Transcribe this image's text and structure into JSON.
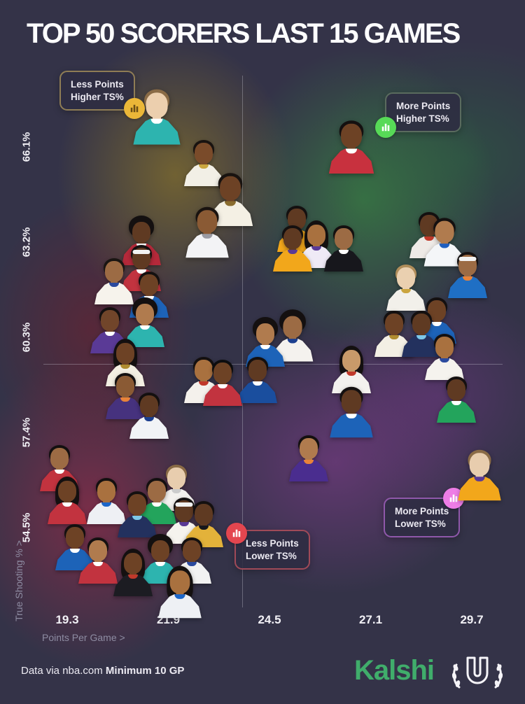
{
  "chart_data": {
    "type": "scatter",
    "title": "TOP 50 SCORERS LAST 15 GAMES",
    "x_axis": {
      "label": "Points Per Game >",
      "ticks": [
        "19.3",
        "21.9",
        "24.5",
        "27.1",
        "29.7"
      ]
    },
    "y_axis": {
      "label": "True Shooting % >",
      "ticks": [
        "66.1%",
        "63.2%",
        "60.3%",
        "57.4%",
        "54.5%"
      ]
    },
    "median_lines": {
      "ppg": 23.8,
      "ts": 59.5
    },
    "grid": false,
    "points": [
      {
        "ppg": 21.6,
        "ts": 67.2,
        "jersey": "#2db4af",
        "trim": "#ffffff",
        "skin": "#eccfae",
        "hair": "#8a6b46",
        "size": 1.2
      },
      {
        "ppg": 22.8,
        "ts": 65.8,
        "jersey": "#f2efe6",
        "trim": "#caa53f",
        "skin": "#7a4b2a",
        "hair": "#191310"
      },
      {
        "ppg": 23.5,
        "ts": 64.7,
        "jersey": "#f4f0e4",
        "trim": "#8a6d2f",
        "skin": "#6d4225",
        "hair": "#191310",
        "size": 1.15
      },
      {
        "ppg": 22.9,
        "ts": 63.7,
        "jersey": "#f3f3f5",
        "trim": "#9a9aa2",
        "skin": "#8a5a34",
        "hair": "#191310",
        "size": 1.1
      },
      {
        "ppg": 21.2,
        "ts": 63.4,
        "jersey": "#b5293a",
        "trim": "#ffffff",
        "skin": "#5f3a22",
        "hair": "#141010",
        "hair_style": "afro"
      },
      {
        "ppg": 20.5,
        "ts": 62.2,
        "jersey": "#f6f3ec",
        "trim": "#2b4a9e",
        "skin": "#9c6b44",
        "hair": "#1a1512"
      },
      {
        "ppg": 21.2,
        "ts": 62.6,
        "jersey": "#c2333f",
        "trim": "#ffffff",
        "skin": "#5f3a22",
        "hair": "#141010",
        "headband": true
      },
      {
        "ppg": 21.4,
        "ts": 61.8,
        "jersey": "#1d63b8",
        "trim": "#ffffff",
        "skin": "#6d4225",
        "hair": "#141010"
      },
      {
        "ppg": 20.4,
        "ts": 60.7,
        "jersey": "#5a3a96",
        "trim": "#ffffff",
        "skin": "#71452a",
        "hair": "#141010"
      },
      {
        "ppg": 21.3,
        "ts": 60.9,
        "jersey": "#2db4af",
        "trim": "#ffffff",
        "skin": "#b07b4e",
        "hair": "#141010",
        "hair_style": "afro"
      },
      {
        "ppg": 20.8,
        "ts": 59.7,
        "jersey": "#f3efe2",
        "trim": "#b08c2f",
        "skin": "#6d4225",
        "hair": "#141010",
        "hair_style": "long"
      },
      {
        "ppg": 20.8,
        "ts": 58.7,
        "jersey": "#46327e",
        "trim": "#e8833a",
        "skin": "#8a5a34",
        "hair": "#141010"
      },
      {
        "ppg": 21.4,
        "ts": 58.1,
        "jersey": "#f1f3f6",
        "trim": "#1c3f8f",
        "skin": "#5f3a22",
        "hair": "#141010"
      },
      {
        "ppg": 22.8,
        "ts": 59.2,
        "jersey": "#f4f1ec",
        "trim": "#c0392b",
        "skin": "#a9713f",
        "hair": "#141010"
      },
      {
        "ppg": 23.3,
        "ts": 59.1,
        "jersey": "#c2333f",
        "trim": "#ffffff",
        "skin": "#6d4225",
        "hair": "#0d0d0f"
      },
      {
        "ppg": 24.2,
        "ts": 59.2,
        "jersey": "#1a4e9e",
        "trim": "#ffffff",
        "skin": "#5f3a22",
        "hair": "#141010"
      },
      {
        "ppg": 24.4,
        "ts": 60.3,
        "jersey": "#1d63b8",
        "trim": "#ffffff",
        "skin": "#b07b4e",
        "hair": "#141010",
        "hair_style": "afro"
      },
      {
        "ppg": 19.1,
        "ts": 56.5,
        "jersey": "#c2333f",
        "trim": "#ffffff",
        "skin": "#9c6b44",
        "hair": "#141010"
      },
      {
        "ppg": 19.3,
        "ts": 55.5,
        "jersey": "#c2333f",
        "trim": "#ffffff",
        "skin": "#6d4225",
        "hair": "#141010",
        "hair_style": "long"
      },
      {
        "ppg": 20.3,
        "ts": 55.5,
        "jersey": "#eef0f4",
        "trim": "#1c66c8",
        "skin": "#a9713f",
        "hair": "#141010"
      },
      {
        "ppg": 21.1,
        "ts": 55.1,
        "jersey": "#23315e",
        "trim": "#7ec8e8",
        "skin": "#6d4225",
        "hair": "#141010"
      },
      {
        "ppg": 21.6,
        "ts": 55.5,
        "jersey": "#23a45c",
        "trim": "#ffffff",
        "skin": "#9c6b44",
        "hair": "#141010"
      },
      {
        "ppg": 22.1,
        "ts": 55.9,
        "jersey": "#f3f1ee",
        "trim": "#cccccc",
        "skin": "#e8cdae",
        "hair": "#8a6b46"
      },
      {
        "ppg": 22.3,
        "ts": 54.9,
        "jersey": "#f5f3ee",
        "trim": "#5a3a96",
        "skin": "#5f3a22",
        "hair": "#141010",
        "headband": true
      },
      {
        "ppg": 22.8,
        "ts": 54.8,
        "jersey": "#e3b23a",
        "trim": "#17171c",
        "skin": "#5f3a22",
        "hair": "#141010"
      },
      {
        "ppg": 19.5,
        "ts": 54.1,
        "jersey": "#1d63b8",
        "trim": "#ffffff",
        "skin": "#6d4225",
        "hair": "#141010"
      },
      {
        "ppg": 20.1,
        "ts": 53.7,
        "jersey": "#c2333f",
        "trim": "#ffffff",
        "skin": "#b07b4e",
        "hair": "#141010"
      },
      {
        "ppg": 21.0,
        "ts": 53.3,
        "jersey": "#1c1c22",
        "trim": "#c0392b",
        "skin": "#6d4225",
        "hair": "#141010",
        "hair_style": "long"
      },
      {
        "ppg": 21.7,
        "ts": 53.7,
        "jersey": "#2db4af",
        "trim": "#ffffff",
        "skin": "#6d4225",
        "hair": "#141010",
        "hair_style": "afro"
      },
      {
        "ppg": 22.5,
        "ts": 53.7,
        "jersey": "#f2f2f2",
        "trim": "#2b4a9e",
        "skin": "#6d4225",
        "hair": "#141010"
      },
      {
        "ppg": 22.2,
        "ts": 52.7,
        "jersey": "#eef0f4",
        "trim": "#1c66c8",
        "skin": "#a9713f",
        "hair": "#141010",
        "hair_style": "long",
        "size": 1.1
      },
      {
        "ppg": 26.6,
        "ts": 66.3,
        "jersey": "#c8313e",
        "trim": "#ffffff",
        "skin": "#6d4225",
        "hair": "#141010",
        "size": 1.15
      },
      {
        "ppg": 25.1,
        "ts": 63.2,
        "jersey": "#f2a71b",
        "trim": "#5a3a96",
        "skin": "#5f3a22",
        "hair": "#141010"
      },
      {
        "ppg": 25.7,
        "ts": 63.3,
        "jersey": "#efeaf6",
        "trim": "#5a3a96",
        "skin": "#a9713f",
        "hair": "#141010",
        "hair_style": "long"
      },
      {
        "ppg": 26.4,
        "ts": 63.2,
        "jersey": "#17171c",
        "trim": "#ffffff",
        "skin": "#9c6b44",
        "hair": "#141010"
      },
      {
        "ppg": 29.0,
        "ts": 63.4,
        "jersey": "#f4f6f8",
        "trim": "#1f5fbf",
        "skin": "#b07b4e",
        "hair": "#141010",
        "size": 1.05
      },
      {
        "ppg": 28.6,
        "ts": 63.6,
        "jersey": "#eeeae6",
        "trim": "#c0392b",
        "skin": "#5f3a22",
        "hair": "#141010"
      },
      {
        "ppg": 29.6,
        "ts": 62.4,
        "jersey": "#1f6fc4",
        "trim": "#e8833a",
        "skin": "#9c6b44",
        "hair": "#141010",
        "headband": true
      },
      {
        "ppg": 28.0,
        "ts": 62.0,
        "jersey": "#f2f0ea",
        "trim": "#caa53f",
        "skin": "#ead0b0",
        "hair": "#b08d5a"
      },
      {
        "ppg": 25.1,
        "ts": 60.5,
        "jersey": "#f4f2ee",
        "trim": "#1c3f8f",
        "skin": "#9c6b44",
        "hair": "#141010",
        "hair_style": "afro",
        "size": 1.05
      },
      {
        "ppg": 27.7,
        "ts": 60.6,
        "jersey": "#f3efe4",
        "trim": "#b08c2f",
        "skin": "#6d4225",
        "hair": "#141010"
      },
      {
        "ppg": 28.4,
        "ts": 60.6,
        "jersey": "#23315e",
        "trim": "#7ec8e8",
        "skin": "#5f3a22",
        "hair": "#141010"
      },
      {
        "ppg": 28.8,
        "ts": 61.0,
        "jersey": "#1d63b8",
        "trim": "#ffffff",
        "skin": "#6d4225",
        "hair": "#141010"
      },
      {
        "ppg": 29.0,
        "ts": 59.9,
        "jersey": "#f5f3ee",
        "trim": "#2b4a9e",
        "skin": "#a9713f",
        "hair": "#141010"
      },
      {
        "ppg": 26.6,
        "ts": 59.5,
        "jersey": "#f3f1ee",
        "trim": "#c0392b",
        "skin": "#c89a6a",
        "hair": "#141010",
        "hair_style": "long"
      },
      {
        "ppg": 29.3,
        "ts": 58.6,
        "jersey": "#23a45c",
        "trim": "#ffffff",
        "skin": "#5f3a22",
        "hair": "#141010"
      },
      {
        "ppg": 26.6,
        "ts": 58.2,
        "jersey": "#1d63b8",
        "trim": "#ffffff",
        "skin": "#5f3a22",
        "hair": "#141010",
        "size": 1.1
      },
      {
        "ppg": 25.5,
        "ts": 56.8,
        "jersey": "#4a2d8f",
        "trim": "#e8833a",
        "skin": "#b07b4e",
        "hair": "#141010"
      },
      {
        "ppg": 29.9,
        "ts": 56.3,
        "jersey": "#f2a71b",
        "trim": "#5a3a96",
        "skin": "#e8cdae",
        "hair": "#8a6b46",
        "size": 1.1
      },
      {
        "ppg": 25.2,
        "ts": 63.8,
        "jersey": "#f2a71b",
        "trim": "#5a3a96",
        "skin": "#5f3a22",
        "hair": "#141010"
      }
    ]
  },
  "quadrant_badges": {
    "top_left": {
      "line1": "Less Points",
      "line2": "Higher TS%",
      "accent": "#8f7d55",
      "icon_bg": "#ebb738"
    },
    "top_right": {
      "line1": "More Points",
      "line2": "Higher TS%",
      "accent": "#5a6b5e",
      "icon_bg": "#57da57"
    },
    "bottom_right": {
      "line1": "More Points",
      "line2": "Lower TS%",
      "accent": "#8f58aa",
      "icon_bg": "#ee7de6"
    },
    "bottom_left": {
      "line1": "Less Points",
      "line2": "Lower TS%",
      "accent": "#a04a58",
      "icon_bg": "#e4464f"
    }
  },
  "footer": {
    "credit_regular": "Data via nba.com",
    "credit_bold": "Minimum 10 GP",
    "brand": "Kalshi",
    "brand_color": "#40ad6b"
  }
}
